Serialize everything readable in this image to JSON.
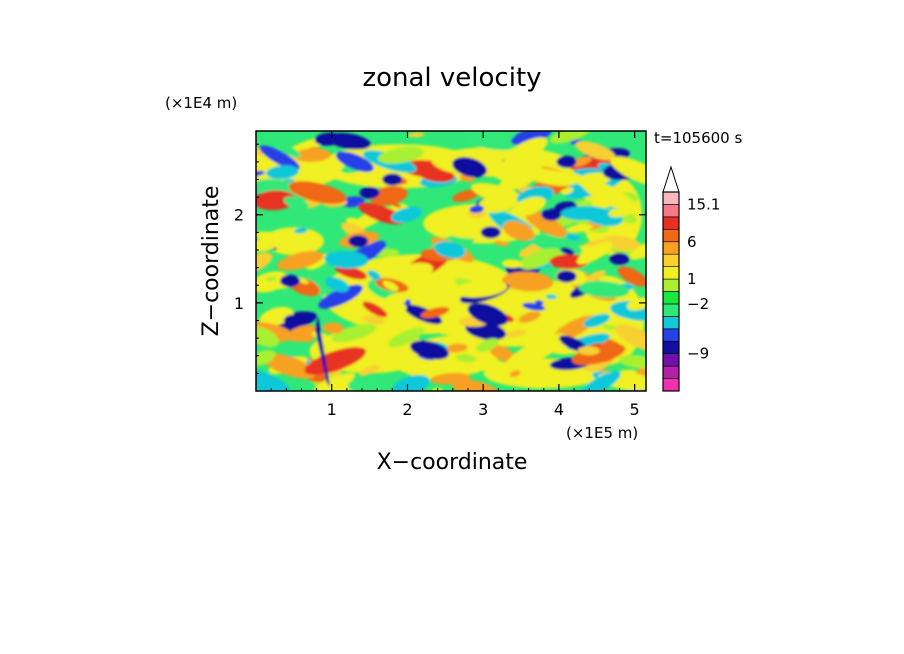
{
  "chart_data": {
    "type": "heatmap",
    "title": "zonal velocity",
    "xlabel": "X−coordinate",
    "ylabel": "Z−coordinate",
    "x_scale_note": "(×1E5 m)",
    "y_scale_note": "(×1E4 m)",
    "time_label": "t=105600 s",
    "xlim": [
      0,
      5.15
    ],
    "ylim": [
      0,
      2.95
    ],
    "x_ticks": [
      1,
      2,
      3,
      4,
      5
    ],
    "y_ticks": [
      1,
      2
    ],
    "colorbar": {
      "levels": [
        {
          "color": "#f030b0"
        },
        {
          "color": "#b020a8"
        },
        {
          "color": "#7010a8"
        },
        {
          "color": "#1010a0"
        },
        {
          "color": "#2840e8"
        },
        {
          "color": "#10c8d8"
        },
        {
          "color": "#30e878"
        },
        {
          "color": "#18e840"
        },
        {
          "color": "#a8f030"
        },
        {
          "color": "#f0f020"
        },
        {
          "color": "#f8d030"
        },
        {
          "color": "#f8a020"
        },
        {
          "color": "#f06818"
        },
        {
          "color": "#e83020"
        },
        {
          "color": "#f87888"
        },
        {
          "color": "#f8b8c0"
        }
      ],
      "tick_labels": [
        {
          "text": "15.1",
          "at_level": 15
        },
        {
          "text": "6",
          "at_level": 12
        },
        {
          "text": "1",
          "at_level": 9
        },
        {
          "text": "−2",
          "at_level": 7
        },
        {
          "text": "−9",
          "at_level": 3
        }
      ],
      "extend_max": true
    }
  }
}
